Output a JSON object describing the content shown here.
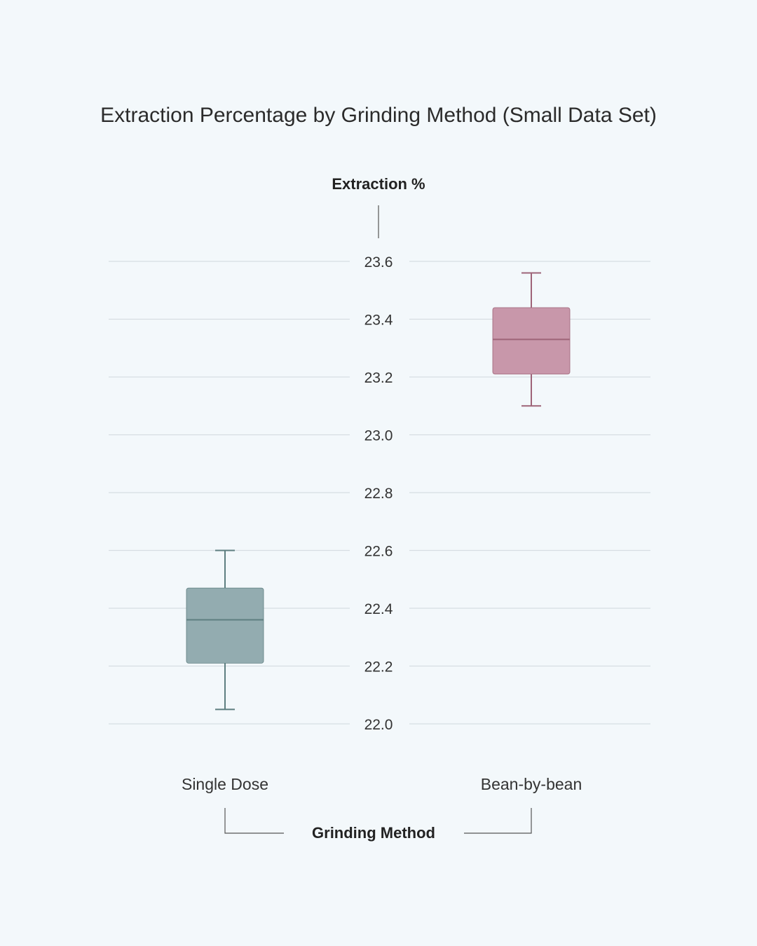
{
  "chart_data": {
    "type": "boxplot",
    "title": "Extraction Percentage by Grinding Method (Small Data Set)",
    "ylabel": "Extraction %",
    "xlabel": "Grinding Method",
    "ylim": [
      22.0,
      23.6
    ],
    "yticks": [
      "22.0",
      "22.2",
      "22.4",
      "22.6",
      "22.8",
      "23.0",
      "23.2",
      "23.4",
      "23.6"
    ],
    "grid": true,
    "categories": [
      "Single Dose",
      "Bean-by-bean"
    ],
    "boxes": [
      {
        "category": "Single Dose",
        "min": 22.05,
        "q1": 22.21,
        "median": 22.36,
        "q3": 22.47,
        "max": 22.6,
        "color": "#93acb0",
        "line_color": "#5e7e80"
      },
      {
        "category": "Bean-by-bean",
        "min": 23.1,
        "q1": 23.21,
        "median": 23.33,
        "q3": 23.44,
        "max": 23.56,
        "color": "#c897aa",
        "line_color": "#9e6478"
      }
    ]
  }
}
